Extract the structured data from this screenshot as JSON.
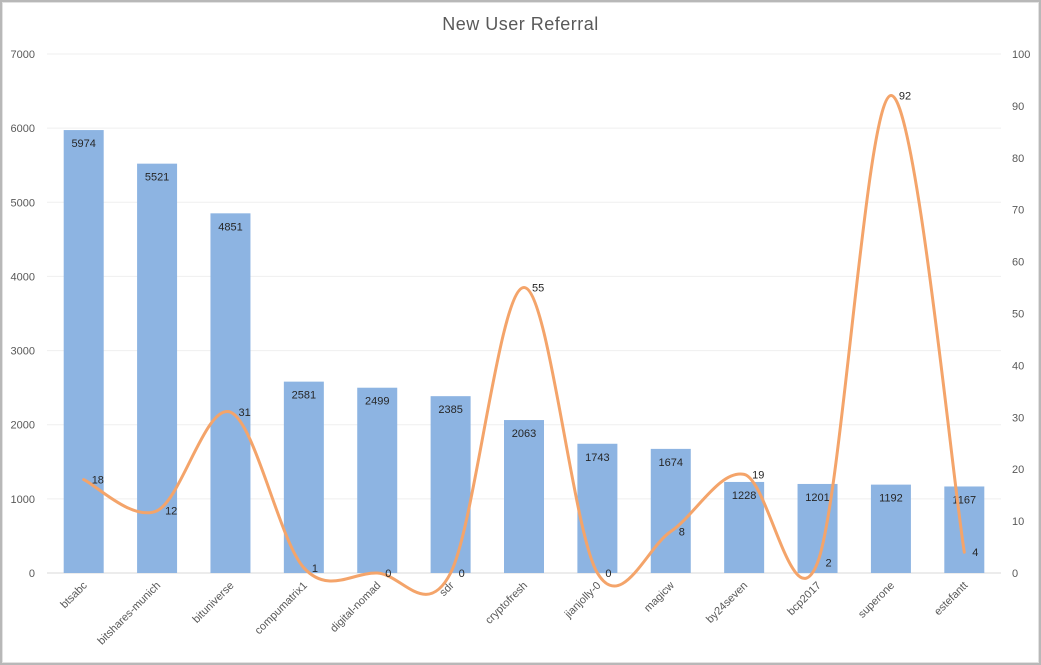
{
  "chart_data": {
    "type": "bar",
    "title": "New User Referral",
    "categories": [
      "btsabc",
      "bitshares-munich",
      "bituniverse",
      "compumatrix1",
      "digital-nomad",
      "sdr",
      "cryptofresh",
      "jianjolly-0",
      "magicw",
      "by24seven",
      "bcp2017",
      "superone",
      "estefantt"
    ],
    "series": [
      {
        "type": "bar",
        "axis": "left",
        "values": [
          5974,
          5521,
          4851,
          2581,
          2499,
          2385,
          2063,
          1743,
          1674,
          1228,
          1201,
          1192,
          1167
        ],
        "color": "#8db4e2"
      },
      {
        "type": "line",
        "axis": "right",
        "smooth": true,
        "values": [
          18,
          12,
          31,
          1,
          0,
          0,
          55,
          0,
          8,
          19,
          2,
          92,
          4
        ],
        "color": "#f4a46a"
      }
    ],
    "y_left": {
      "min": 0,
      "max": 7000,
      "step": 1000
    },
    "y_right": {
      "min": 0,
      "max": 100,
      "step": 10
    },
    "grid": true,
    "legend": "none"
  }
}
